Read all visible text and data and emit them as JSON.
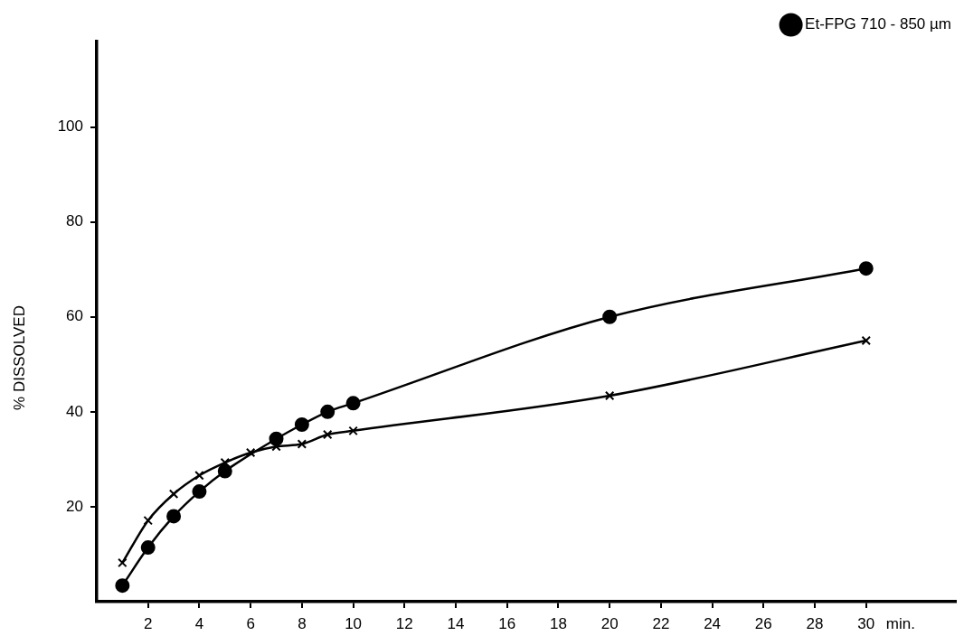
{
  "chart_data": {
    "type": "line",
    "xlabel": "min.",
    "ylabel": "% DISSOLVED",
    "xlim": [
      0,
      33.5
    ],
    "ylim": [
      0,
      118
    ],
    "xticks": [
      2,
      4,
      6,
      8,
      10,
      12,
      14,
      16,
      18,
      20,
      22,
      24,
      26,
      28,
      30
    ],
    "yticks": [
      20,
      40,
      60,
      80,
      100
    ],
    "grid": false,
    "legend": "top right",
    "line_style": "solid",
    "series": [
      {
        "name": "Et-FPG 710 - 850 µm",
        "color": "#000000",
        "marker": "circle",
        "x": [
          1,
          2,
          3,
          4,
          5,
          7,
          8,
          9,
          10,
          20,
          30
        ],
        "values": [
          3.4,
          11.4,
          18,
          23.2,
          27.5,
          34.3,
          37.3,
          40,
          41.8,
          60,
          70.2
        ]
      },
      {
        "color": "#000000",
        "marker": "cross",
        "x": [
          1,
          2,
          3,
          4,
          5,
          6,
          7,
          8,
          9,
          10,
          20,
          30
        ],
        "values": [
          8.2,
          17.1,
          22.7,
          26.6,
          29.3,
          31.4,
          32.7,
          33.2,
          35.2,
          36,
          43.4,
          55
        ]
      }
    ]
  }
}
